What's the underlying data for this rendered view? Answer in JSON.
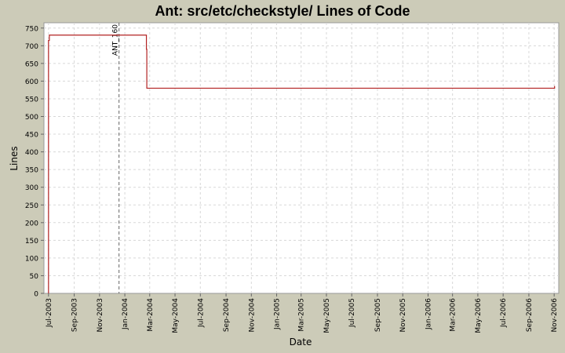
{
  "chart_data": {
    "type": "line",
    "title": "Ant: src/etc/checkstyle/ Lines of Code",
    "xlabel": "Date",
    "ylabel": "Lines",
    "ylim": [
      0,
      765
    ],
    "xlim": [
      "2003-06-20",
      "2006-11-12"
    ],
    "grid": true,
    "y_ticks": [
      0,
      50,
      100,
      150,
      200,
      250,
      300,
      350,
      400,
      450,
      500,
      550,
      600,
      650,
      700,
      750
    ],
    "x_ticks": [
      {
        "date": "2003-07-01",
        "label": "Jul-2003"
      },
      {
        "date": "2003-09-01",
        "label": "Sep-2003"
      },
      {
        "date": "2003-11-01",
        "label": "Nov-2003"
      },
      {
        "date": "2004-01-01",
        "label": "Jan-2004"
      },
      {
        "date": "2004-03-01",
        "label": "Mar-2004"
      },
      {
        "date": "2004-05-01",
        "label": "May-2004"
      },
      {
        "date": "2004-07-01",
        "label": "Jul-2004"
      },
      {
        "date": "2004-09-01",
        "label": "Sep-2004"
      },
      {
        "date": "2004-11-01",
        "label": "Nov-2004"
      },
      {
        "date": "2005-01-01",
        "label": "Jan-2005"
      },
      {
        "date": "2005-03-01",
        "label": "Mar-2005"
      },
      {
        "date": "2005-05-01",
        "label": "May-2005"
      },
      {
        "date": "2005-07-01",
        "label": "Jul-2005"
      },
      {
        "date": "2005-09-01",
        "label": "Sep-2005"
      },
      {
        "date": "2005-11-01",
        "label": "Nov-2005"
      },
      {
        "date": "2006-01-01",
        "label": "Jan-2006"
      },
      {
        "date": "2006-03-01",
        "label": "Mar-2006"
      },
      {
        "date": "2006-05-01",
        "label": "May-2006"
      },
      {
        "date": "2006-07-01",
        "label": "Jul-2006"
      },
      {
        "date": "2006-09-01",
        "label": "Sep-2006"
      },
      {
        "date": "2006-11-01",
        "label": "Nov-2006"
      }
    ],
    "series": [
      {
        "color": "#b22222",
        "step": true,
        "points": [
          {
            "x": "2003-07-01",
            "y": 0
          },
          {
            "x": "2003-07-01",
            "y": 715
          },
          {
            "x": "2003-07-03",
            "y": 730
          },
          {
            "x": "2004-02-22",
            "y": 690
          },
          {
            "x": "2004-02-23",
            "y": 580
          },
          {
            "x": "2006-11-02",
            "y": 585
          },
          {
            "x": "2006-11-03",
            "y": 585
          }
        ]
      }
    ],
    "annotations": [
      {
        "date": "2003-12-18",
        "label": "ANT_160"
      }
    ],
    "colors": {
      "background": "#cccbb8",
      "plot_background": "#ffffff",
      "grid": "#d8d8d8",
      "series": "#b22222",
      "annotation_line": "#666666"
    }
  }
}
